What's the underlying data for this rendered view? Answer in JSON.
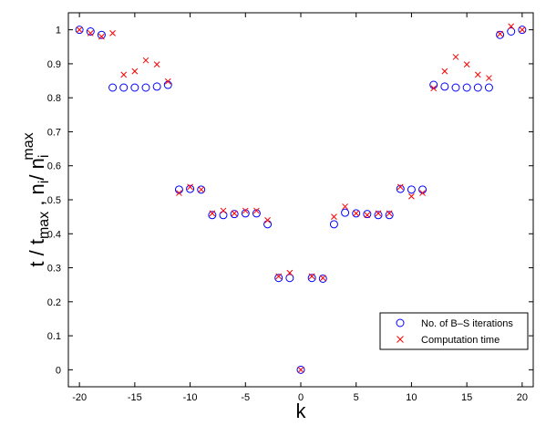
{
  "chart_data": {
    "type": "scatter",
    "xlabel": "k",
    "ylabel": {
      "t": "t",
      "sep": " / ",
      "t_sub": "max",
      "comma": " , ",
      "n": "n",
      "n_sub": "i",
      "n2": "/ n",
      "n2_sub": "i",
      "n2_sup": "max"
    },
    "xlim": [
      -21,
      21
    ],
    "ylim": [
      -0.05,
      1.05
    ],
    "xticks": [
      -20,
      -15,
      -10,
      -5,
      0,
      5,
      10,
      15,
      20
    ],
    "yticks": [
      0,
      0.1,
      0.2,
      0.3,
      0.4,
      0.5,
      0.6,
      0.7,
      0.8,
      0.9,
      1
    ],
    "legend_position": "bottom-right",
    "series": [
      {
        "name": "No. of B–S iterations",
        "marker": "circle",
        "color": "#0000ff",
        "x": [
          -20,
          -19,
          -18,
          -17,
          -16,
          -15,
          -14,
          -13,
          -12,
          -11,
          -10,
          -9,
          -8,
          -7,
          -6,
          -5,
          -4,
          -3,
          -2,
          -1,
          0,
          1,
          2,
          3,
          4,
          5,
          6,
          7,
          8,
          9,
          10,
          11,
          12,
          13,
          14,
          15,
          16,
          17,
          18,
          19,
          20
        ],
        "y": [
          1.0,
          0.995,
          0.985,
          0.83,
          0.83,
          0.83,
          0.83,
          0.833,
          0.838,
          0.53,
          0.532,
          0.53,
          0.455,
          0.455,
          0.458,
          0.46,
          0.46,
          0.428,
          0.27,
          0.27,
          0.0,
          0.27,
          0.268,
          0.428,
          0.462,
          0.46,
          0.458,
          0.455,
          0.455,
          0.532,
          0.53,
          0.53,
          0.838,
          0.833,
          0.83,
          0.83,
          0.83,
          0.83,
          0.985,
          0.995,
          1.0
        ]
      },
      {
        "name": "Computation time",
        "marker": "x",
        "color": "#ff0000",
        "x": [
          -20,
          -19,
          -18,
          -17,
          -16,
          -15,
          -14,
          -13,
          -12,
          -11,
          -10,
          -9,
          -8,
          -7,
          -6,
          -5,
          -4,
          -3,
          -2,
          -1,
          0,
          1,
          2,
          3,
          4,
          5,
          6,
          7,
          8,
          9,
          10,
          11,
          12,
          13,
          14,
          15,
          16,
          17,
          18,
          19,
          20
        ],
        "y": [
          1.0,
          0.99,
          0.98,
          0.99,
          0.868,
          0.878,
          0.91,
          0.898,
          0.848,
          0.52,
          0.538,
          0.53,
          0.46,
          0.468,
          0.46,
          0.468,
          0.468,
          0.44,
          0.275,
          0.285,
          0.0,
          0.275,
          0.27,
          0.45,
          0.48,
          0.46,
          0.455,
          0.46,
          0.46,
          0.538,
          0.51,
          0.52,
          0.828,
          0.878,
          0.92,
          0.898,
          0.868,
          0.858,
          0.988,
          1.01,
          1.0
        ]
      }
    ]
  }
}
